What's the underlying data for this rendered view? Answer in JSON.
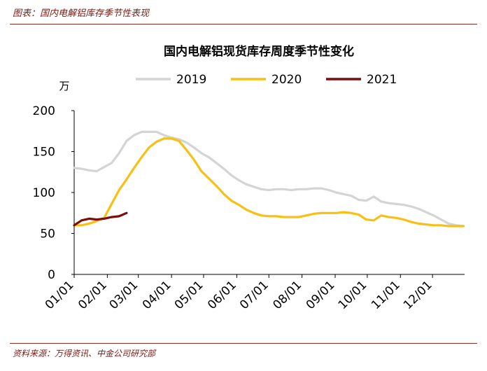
{
  "header": {
    "caption": "图表：国内电解铝库存季节性表现"
  },
  "footer": {
    "source": "资料来源：万得资讯、中金公司研究部"
  },
  "chart_data": {
    "type": "line",
    "title": "国内电解铝现货库存周度季节性变化",
    "unit": "万",
    "ylim": [
      0,
      200
    ],
    "yticks": [
      0,
      50,
      100,
      150,
      200
    ],
    "xlim": [
      1,
      366
    ],
    "xtick_labels": [
      "01/01",
      "02/01",
      "03/01",
      "04/01",
      "05/01",
      "06/01",
      "07/01",
      "08/01",
      "09/01",
      "10/01",
      "11/01",
      "12/01"
    ],
    "xtick_days": [
      1,
      32,
      61,
      92,
      122,
      153,
      183,
      214,
      245,
      275,
      306,
      336
    ],
    "grid": false,
    "legend_position": "top",
    "series": [
      {
        "name": "2019",
        "color": "#d4d4d4",
        "x": [
          1,
          8,
          15,
          22,
          29,
          36,
          43,
          50,
          57,
          64,
          71,
          78,
          85,
          92,
          99,
          106,
          113,
          120,
          127,
          134,
          141,
          148,
          155,
          162,
          169,
          176,
          183,
          190,
          197,
          204,
          211,
          218,
          225,
          232,
          239,
          246,
          253,
          260,
          267,
          274,
          281,
          288,
          295,
          302,
          309,
          316,
          323,
          330,
          337,
          344,
          351,
          358,
          365
        ],
        "y": [
          130,
          129,
          127,
          126,
          131,
          136,
          148,
          163,
          170,
          174,
          174,
          174,
          170,
          167,
          165,
          161,
          155,
          148,
          143,
          136,
          129,
          121,
          115,
          110,
          107,
          104,
          103,
          104,
          104,
          103,
          104,
          104,
          105,
          105,
          103,
          100,
          98,
          96,
          91,
          90,
          95,
          89,
          87,
          86,
          85,
          83,
          80,
          76,
          72,
          67,
          62,
          60,
          59
        ]
      },
      {
        "name": "2020",
        "color": "#f6c015",
        "x": [
          1,
          8,
          15,
          22,
          29,
          36,
          43,
          50,
          57,
          64,
          71,
          78,
          85,
          92,
          99,
          106,
          113,
          120,
          127,
          134,
          141,
          148,
          155,
          162,
          169,
          176,
          183,
          190,
          197,
          204,
          211,
          218,
          225,
          232,
          239,
          246,
          253,
          260,
          267,
          274,
          281,
          288,
          295,
          302,
          309,
          316,
          323,
          330,
          337,
          344,
          351,
          358,
          365
        ],
        "y": [
          60,
          60,
          62,
          65,
          69,
          86,
          103,
          116,
          130,
          143,
          155,
          162,
          166,
          166,
          163,
          152,
          140,
          126,
          117,
          108,
          98,
          90,
          85,
          79,
          75,
          72,
          71,
          71,
          70,
          70,
          70,
          72,
          74,
          75,
          75,
          75,
          76,
          75,
          73,
          67,
          66,
          72,
          70,
          69,
          67,
          64,
          62,
          61,
          60,
          60,
          59,
          59,
          59
        ]
      },
      {
        "name": "2021",
        "color": "#7d0d0d",
        "x": [
          1,
          8,
          15,
          22,
          29,
          36,
          43,
          50
        ],
        "y": [
          60,
          66,
          68,
          67,
          68,
          70,
          71,
          75
        ]
      }
    ]
  }
}
